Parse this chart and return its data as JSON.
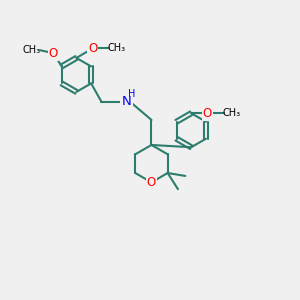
{
  "background_color": "#f0f0f0",
  "bond_color": "#2d7d6e",
  "nitrogen_color": "#0000ff",
  "oxygen_color": "#ff0000",
  "bond_width": 1.5,
  "font_size": 8.5,
  "figsize": [
    3.0,
    3.0
  ],
  "dpi": 100,
  "xlim": [
    -0.5,
    9.5
  ],
  "ylim": [
    -5.5,
    4.0
  ]
}
